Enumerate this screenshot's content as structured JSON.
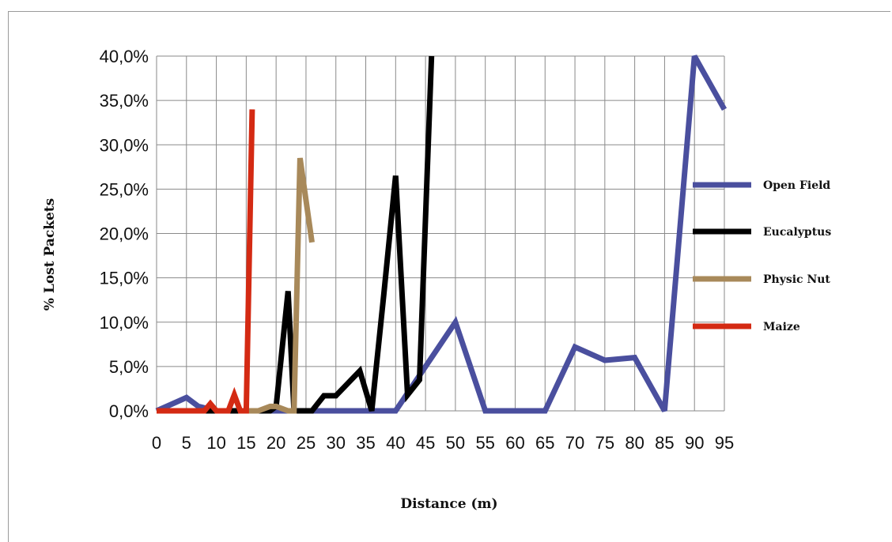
{
  "chart_data": {
    "type": "line",
    "xlabel": "Distance (m)",
    "ylabel": "% Lost Packets",
    "xlim": [
      0,
      95
    ],
    "ylim": [
      0,
      40
    ],
    "x_ticks": [
      "0",
      "5",
      "10",
      "15",
      "20",
      "25",
      "30",
      "35",
      "40",
      "45",
      "50",
      "55",
      "60",
      "65",
      "70",
      "75",
      "80",
      "85",
      "90",
      "95"
    ],
    "y_ticks": [
      "0,0%",
      "5,0%",
      "10,0%",
      "15,0%",
      "20,0%",
      "25,0%",
      "30,0%",
      "35,0%",
      "40,0%"
    ],
    "grid": true,
    "legend_position": "right",
    "series": [
      {
        "name": "Open Field",
        "color": "#4a4f9e",
        "points": [
          [
            0,
            0
          ],
          [
            5,
            1.5
          ],
          [
            7,
            0.5
          ],
          [
            10,
            0
          ],
          [
            15,
            0
          ],
          [
            20,
            0
          ],
          [
            25,
            0
          ],
          [
            30,
            0
          ],
          [
            35,
            0
          ],
          [
            40,
            0
          ],
          [
            45,
            5
          ],
          [
            50,
            10
          ],
          [
            55,
            0
          ],
          [
            60,
            0
          ],
          [
            65,
            0
          ],
          [
            70,
            7.2
          ],
          [
            75,
            5.7
          ],
          [
            80,
            6
          ],
          [
            85,
            0
          ],
          [
            90,
            40
          ],
          [
            95,
            34
          ]
        ]
      },
      {
        "name": "Eucalyptus",
        "color": "#000000",
        "points": [
          [
            0,
            0
          ],
          [
            5,
            0
          ],
          [
            10,
            0
          ],
          [
            15,
            0
          ],
          [
            19,
            0
          ],
          [
            20,
            0.5
          ],
          [
            22,
            13.5
          ],
          [
            23,
            0
          ],
          [
            26,
            0
          ],
          [
            28,
            1.7
          ],
          [
            30,
            1.7
          ],
          [
            34,
            4.5
          ],
          [
            36,
            0
          ],
          [
            38,
            13
          ],
          [
            40,
            26.5
          ],
          [
            42,
            1.8
          ],
          [
            44,
            3.5
          ],
          [
            46,
            40
          ]
        ]
      },
      {
        "name": "Physic Nut",
        "color": "#a8895a",
        "points": [
          [
            15,
            0
          ],
          [
            17,
            0
          ],
          [
            19,
            0.5
          ],
          [
            20,
            0.5
          ],
          [
            22,
            0
          ],
          [
            23,
            0
          ],
          [
            24,
            28.5
          ],
          [
            26,
            19
          ]
        ]
      },
      {
        "name": "Maize",
        "color": "#d42a13",
        "points": [
          [
            0,
            0
          ],
          [
            5,
            0
          ],
          [
            8,
            0
          ],
          [
            9,
            0.8
          ],
          [
            10,
            0
          ],
          [
            12,
            0
          ],
          [
            13,
            1.8
          ],
          [
            14,
            0
          ],
          [
            15,
            0
          ],
          [
            16,
            34
          ]
        ]
      }
    ]
  }
}
